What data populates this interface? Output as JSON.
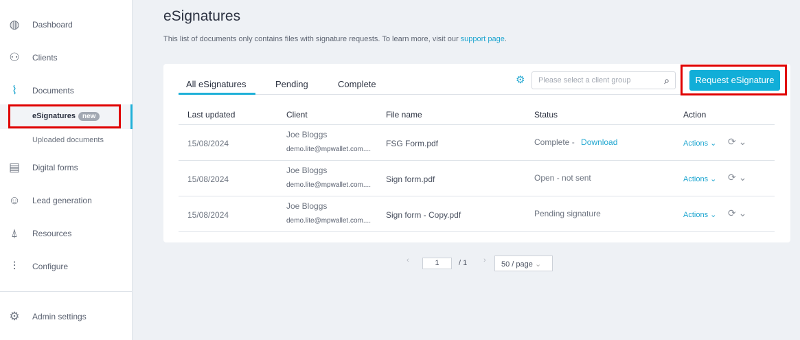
{
  "sidebar": {
    "items": [
      {
        "label": "Dashboard",
        "icon": "globe-icon"
      },
      {
        "label": "Clients",
        "icon": "users-icon"
      },
      {
        "label": "Documents",
        "icon": "paperclip-icon"
      },
      {
        "label": "Digital forms",
        "icon": "form-icon"
      },
      {
        "label": "Lead generation",
        "icon": "smiley-icon"
      },
      {
        "label": "Resources",
        "icon": "rocket-icon"
      },
      {
        "label": "Configure",
        "icon": "sliders-icon"
      }
    ],
    "sub": {
      "esignatures": "eSignatures",
      "badge": "new",
      "uploaded": "Uploaded documents"
    },
    "admin": "Admin settings"
  },
  "page": {
    "title": "eSignatures",
    "desc": "This list of documents only contains files with signature requests. To learn more, visit our ",
    "desc_link": "support page",
    "desc_end": "."
  },
  "tabs": [
    "All eSignatures",
    "Pending",
    "Complete"
  ],
  "search": {
    "placeholder": "Please select a client group"
  },
  "request_button": "Request eSignature",
  "table": {
    "headers": [
      "Last updated",
      "Client",
      "File name",
      "Status",
      "Action"
    ],
    "rows": [
      {
        "date": "15/08/2024",
        "name": "Joe Bloggs",
        "email": "demo.lite@mpwallet.com....",
        "file": "FSG Form.pdf",
        "status": "Complete -",
        "status_link": "Download",
        "action": "Actions"
      },
      {
        "date": "15/08/2024",
        "name": "Joe Bloggs",
        "email": "demo.lite@mpwallet.com....",
        "file": "Sign form.pdf",
        "status": "Open - not sent",
        "status_link": "",
        "action": "Actions"
      },
      {
        "date": "15/08/2024",
        "name": "Joe Bloggs",
        "email": "demo.lite@mpwallet.com....",
        "file": "Sign form - Copy.pdf",
        "status": "Pending signature",
        "status_link": "",
        "action": "Actions"
      }
    ]
  },
  "pagination": {
    "current": "1",
    "total": "/ 1",
    "page_size": "50 / page"
  },
  "colors": {
    "accent": "#11aed8",
    "highlight": "#e00000"
  }
}
